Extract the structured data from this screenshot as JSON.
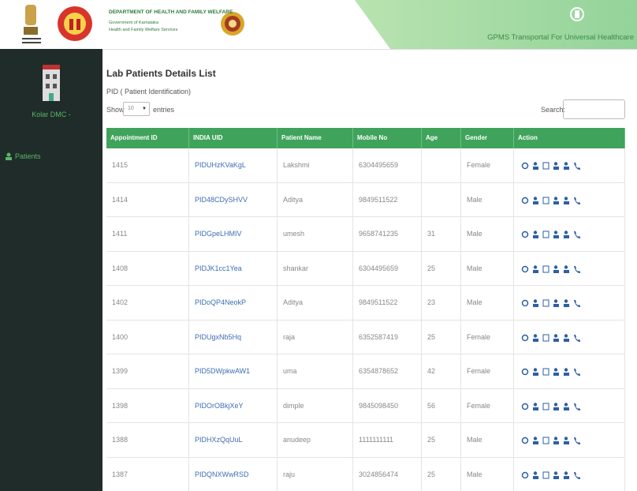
{
  "header": {
    "department": "DEPARTMENT OF HEALTH AND FAMILY WELFARE",
    "government": "Government of Karnataka",
    "services": "Health and Family Welfare Services",
    "app_name": "GPMS Transportal For Universal Healthcare"
  },
  "sidebar": {
    "org": "Kolar DMC -",
    "menu": [
      "Patients"
    ]
  },
  "page": {
    "title": "Lab Patients Details List",
    "subtitle": "PID ( Patient Identification)",
    "show": "Show",
    "page_size": "10",
    "entries": "entries",
    "search": "Search:"
  },
  "table": {
    "columns": [
      "Appointment ID",
      "INDIA UID",
      "Patient Name",
      "Mobile No",
      "Age",
      "Gender",
      "Action"
    ],
    "rows": [
      [
        "1415",
        "PIDUHzKVaKgL",
        "Lakshmi",
        "6304495659",
        null,
        "Female"
      ],
      [
        "1414",
        "PID48CDySHVV",
        "Aditya",
        "9849511522",
        null,
        "Male"
      ],
      [
        "1411",
        "PIDGpeLHMIV",
        "umesh",
        "9658741235",
        "31",
        "Male"
      ],
      [
        "1408",
        "PIDJK1cc1Yea",
        "shankar",
        "6304495659",
        "25",
        "Male"
      ],
      [
        "1402",
        "PIDoQP4NeokP",
        "Aditya",
        "9849511522",
        "23",
        "Male"
      ],
      [
        "1400",
        "PIDUgxNb5Hq",
        "raja",
        "6352587419",
        "25",
        "Female"
      ],
      [
        "1399",
        "PID5DWpkwAW1",
        "uma",
        "6354878652",
        "42",
        "Female"
      ],
      [
        "1398",
        "PIDOrOBkjXeY",
        "dimple",
        "9845098450",
        "56",
        "Female"
      ],
      [
        "1388",
        "PIDHXzQqUuL",
        "anudeep",
        "1111111111",
        "25",
        "Male"
      ],
      [
        "1387",
        "PIDQNXWwRSD",
        "raju",
        "3024856474",
        "25",
        "Male"
      ]
    ]
  }
}
